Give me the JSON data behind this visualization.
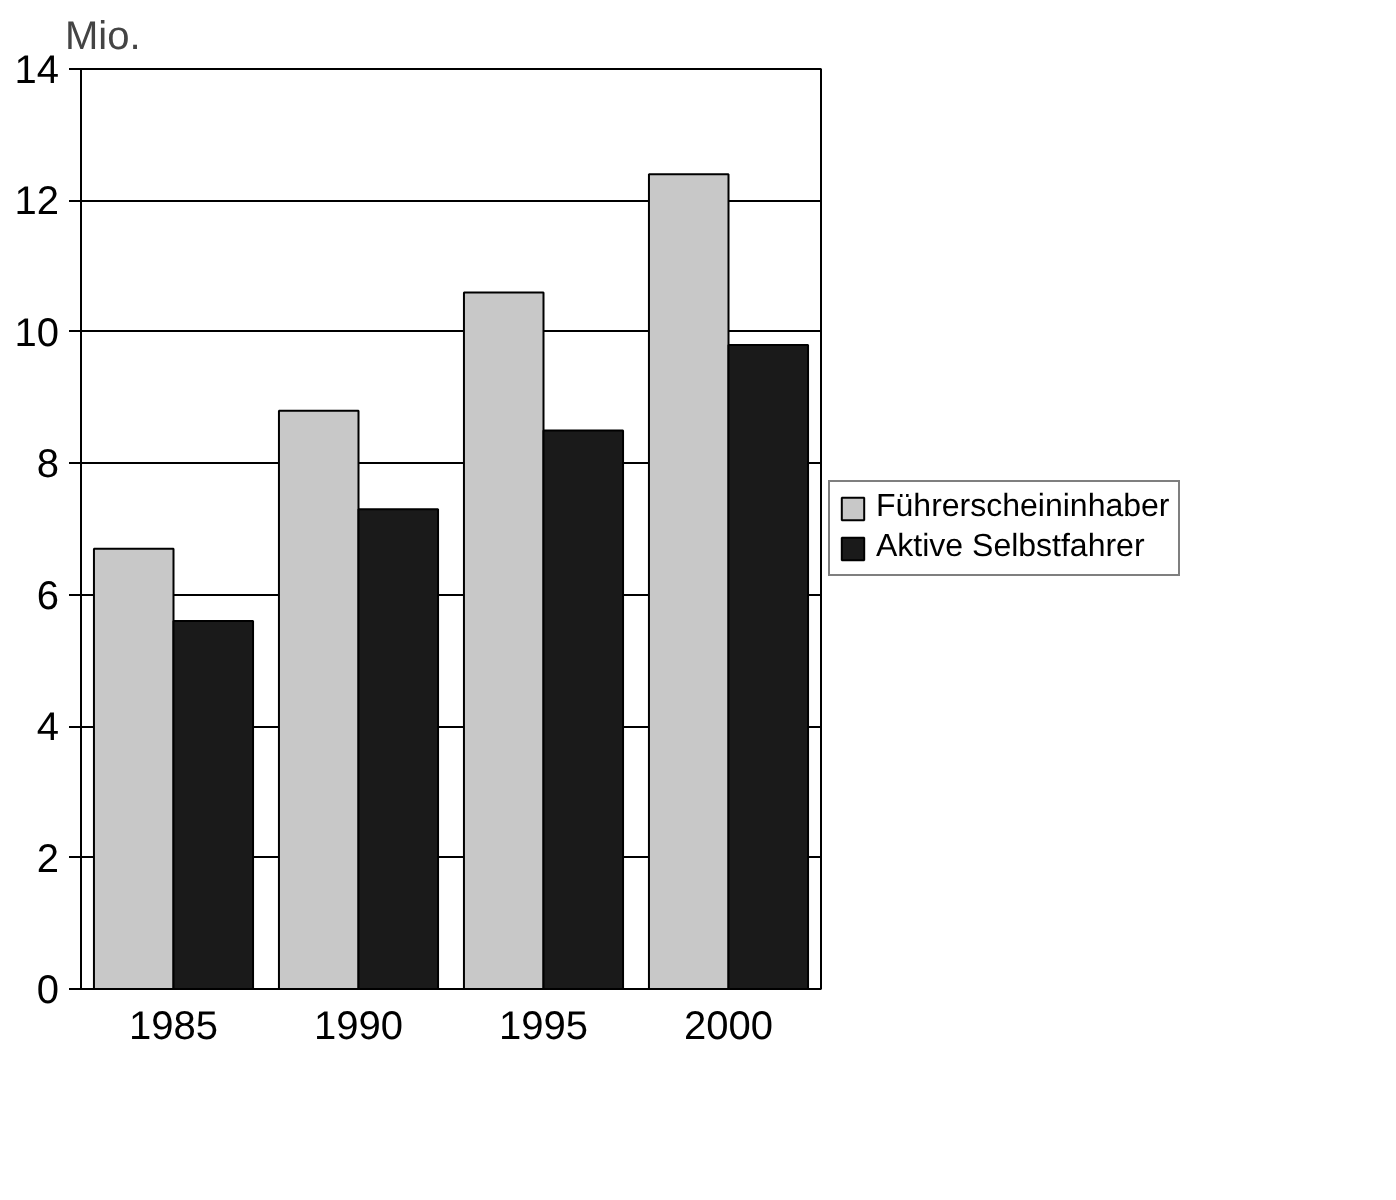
{
  "chart_data": {
    "type": "bar",
    "ylabel": "Mio.",
    "categories": [
      "1985",
      "1990",
      "1995",
      "2000"
    ],
    "series": [
      {
        "name": "Führerscheininhaber",
        "color": "#c8c8c8",
        "values": [
          6.7,
          8.8,
          10.6,
          12.4
        ]
      },
      {
        "name": "Aktive Selbstfahrer",
        "color": "#1a1a1a",
        "values": [
          5.6,
          7.3,
          8.5,
          9.8
        ]
      }
    ],
    "ylim": [
      0,
      14
    ],
    "yticks": [
      0,
      2,
      4,
      6,
      8,
      10,
      12,
      14
    ],
    "grid": "y",
    "legend": "right"
  }
}
